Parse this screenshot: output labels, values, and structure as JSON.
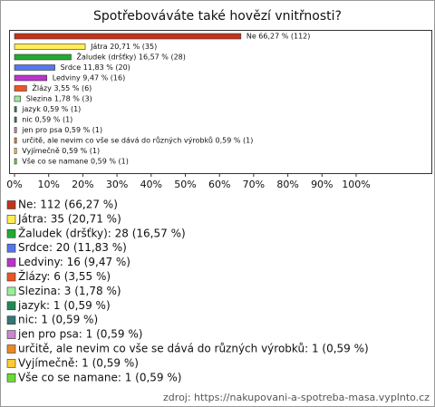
{
  "chart_data": {
    "type": "bar",
    "orientation": "horizontal",
    "title": "Spotřebováváte také hovězí vnitřnosti?",
    "values": [
      66.27,
      20.71,
      16.57,
      11.83,
      9.47,
      3.55,
      1.78,
      0.59,
      0.59,
      0.59,
      0.59,
      0.59,
      0.59
    ],
    "value_labels": [
      "Ne 66,27 % (112)",
      "Játra 20,71 % (35)",
      "Žaludek (dršťky) 16,57 % (28)",
      "Srdce 11,83 % (20)",
      "Ledviny 9,47 % (16)",
      "Žlázy 3,55 % (6)",
      "Slezina 1,78 % (3)",
      "jazyk 0,59 % (1)",
      "nic 0,59 % (1)",
      "jen pro psa 0,59 % (1)",
      "určitě,   ale   nevim   co vše   se dává  do různých výrobků 0,59 % (1)",
      "Vyjímečně 0,59 % (1)",
      "Vše co se namane 0,59 % (1)"
    ],
    "legend_labels": [
      "Ne: 112 (66,27 %)",
      "Játra: 35 (20,71 %)",
      "Žaludek (dršťky): 28 (16,57 %)",
      "Srdce: 20 (11,83 %)",
      "Ledviny: 16 (9,47 %)",
      "Žlázy: 6 (3,55 %)",
      "Slezina: 3 (1,78 %)",
      "jazyk: 1 (0,59 %)",
      "nic: 1 (0,59 %)",
      "jen pro psa: 1 (0,59 %)",
      "určitě,   ale   nevim   co vše   se dává  do různých výrobků: 1 (0,59 %)",
      "Vyjímečně: 1 (0,59 %)",
      "Vše co se namane: 1 (0,59 %)"
    ],
    "colors": [
      "#c1331a",
      "#ffee55",
      "#22aa33",
      "#5577ee",
      "#bb33cc",
      "#ee5522",
      "#99ee99",
      "#228855",
      "#337777",
      "#cc88cc",
      "#ee8822",
      "#ffcc33",
      "#66dd33"
    ],
    "xlim": [
      0,
      100
    ],
    "xticks": [
      {
        "value": 0,
        "label": "0%"
      },
      {
        "value": 10,
        "label": "10%"
      },
      {
        "value": 20,
        "label": "20%"
      },
      {
        "value": 30,
        "label": "30%"
      },
      {
        "value": 40,
        "label": "40%"
      },
      {
        "value": 50,
        "label": "50%"
      },
      {
        "value": 60,
        "label": "60%"
      },
      {
        "value": 70,
        "label": "70%"
      },
      {
        "value": 80,
        "label": "80%"
      },
      {
        "value": 90,
        "label": "90%"
      },
      {
        "value": 100,
        "label": "100%"
      }
    ],
    "grid": false,
    "source": "zdroj: https://nakupovani-a-spotreba-masa.vyplnto.cz"
  }
}
